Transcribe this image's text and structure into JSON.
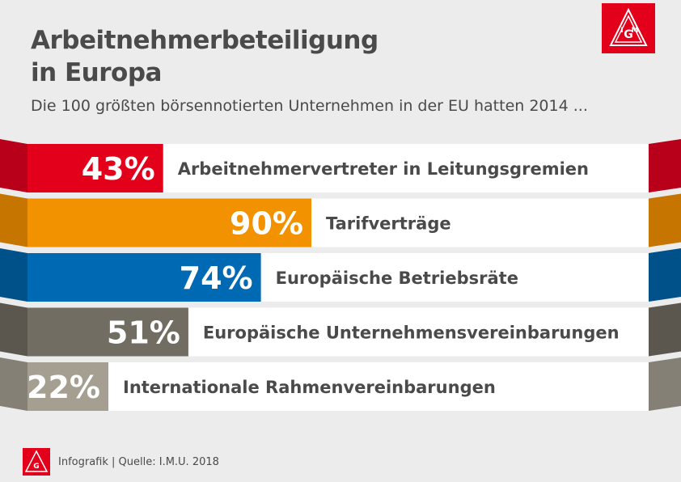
{
  "title_lines": [
    "Arbeitnehmerbeteiligung",
    "in Europa"
  ],
  "subtitle": "Die 100 größten börsennotierten Unternehmen in der EU hatten 2014 ...",
  "source": "Infografik | Quelle: I.M.U. 2018",
  "logo": "IG Metall",
  "chart_data": {
    "type": "bar",
    "orientation": "horizontal",
    "categories": [
      "Arbeitnehmervertreter in Leitungsgremien",
      "Tarifverträge",
      "Europäische Betriebsräte",
      "Europäische Unternehmensvereinbarungen",
      "Internationale Rahmenvereinbarungen"
    ],
    "values": [
      43,
      90,
      74,
      51,
      22
    ],
    "value_labels": [
      "43%",
      "90%",
      "74%",
      "51%",
      "22%"
    ],
    "unit": "%",
    "xlim": [
      0,
      100
    ],
    "colors": [
      "#e3001b",
      "#f39200",
      "#0069b4",
      "#726d62",
      "#a59f91"
    ],
    "side_colors": [
      "#b8001a",
      "#c67600",
      "#00508a",
      "#5b574f",
      "#858075"
    ],
    "grid": false,
    "legend": "none"
  }
}
